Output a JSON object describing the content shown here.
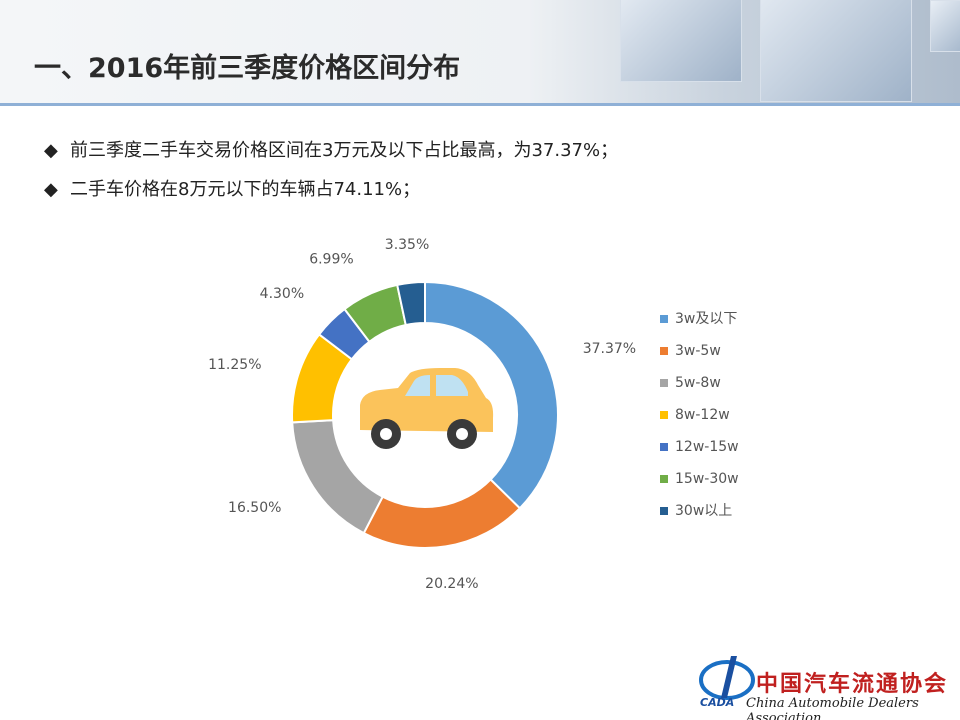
{
  "header": {
    "title": "一、2016年前三季度价格区间分布"
  },
  "bullets": [
    "前三季度二手车交易价格区间在3万元及以下占比最高，为37.37%；",
    "二手车价格在8万元以下的车辆占74.11%；"
  ],
  "chart_data": {
    "type": "donut",
    "categories": [
      "3w及以下",
      "3w-5w",
      "5w-8w",
      "8w-12w",
      "12w-15w",
      "15w-30w",
      "30w以上"
    ],
    "values": [
      37.37,
      20.24,
      16.5,
      11.25,
      4.3,
      6.99,
      3.35
    ],
    "value_labels": [
      "37.37%",
      "20.24%",
      "16.50%",
      "11.25%",
      "4.30%",
      "6.99%",
      "3.35%"
    ],
    "colors": [
      "#5b9bd5",
      "#ed7d31",
      "#a5a5a5",
      "#ffc000",
      "#4472c4",
      "#70ad47",
      "#255e91"
    ],
    "legend": "right"
  },
  "footer": {
    "org_cn": "中国汽车流通协会",
    "org_en": "China Automobile Dealers Association",
    "logo": "CADA"
  }
}
